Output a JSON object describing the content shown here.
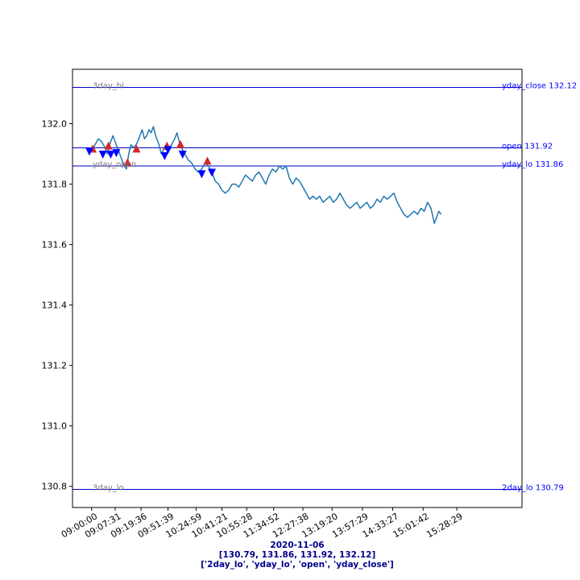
{
  "chart_data": {
    "type": "line",
    "date": "2020-11-06",
    "levels_text": "[130.79, 131.86, 131.92, 132.12]",
    "levels_names_text": "['2day_lo', 'yday_lo', 'open', 'yday_close']",
    "ylim": [
      130.73,
      132.18
    ],
    "yticks": [
      130.8,
      131.0,
      131.2,
      131.4,
      131.6,
      131.8,
      132.0
    ],
    "ytick_labels": [
      "130.8",
      "131.0",
      "131.2",
      "131.4",
      "131.6",
      "131.8",
      "132.0"
    ],
    "x_index_range": [
      -5,
      395
    ],
    "xticks": [
      {
        "i": 12,
        "label": "09:00:00"
      },
      {
        "i": 33,
        "label": "09:07:31"
      },
      {
        "i": 56,
        "label": "09:19:36"
      },
      {
        "i": 80,
        "label": "09:51:39"
      },
      {
        "i": 105,
        "label": "10:24:59"
      },
      {
        "i": 128,
        "label": "10:41:21"
      },
      {
        "i": 150,
        "label": "10:55:28"
      },
      {
        "i": 174,
        "label": "11:34:52"
      },
      {
        "i": 200,
        "label": "12:27:38"
      },
      {
        "i": 226,
        "label": "13:19:20"
      },
      {
        "i": 253,
        "label": "13:57:29"
      },
      {
        "i": 280,
        "label": "14:33:27"
      },
      {
        "i": 307,
        "label": "15:01:42"
      },
      {
        "i": 337,
        "label": "15:28:29"
      }
    ],
    "series": [
      {
        "color": "#1f77b4",
        "points": [
          [
            12,
            131.91
          ],
          [
            15,
            131.93
          ],
          [
            18,
            131.95
          ],
          [
            21,
            131.94
          ],
          [
            24,
            131.92
          ],
          [
            26,
            131.9
          ],
          [
            28,
            131.93
          ],
          [
            31,
            131.96
          ],
          [
            33,
            131.94
          ],
          [
            35,
            131.92
          ],
          [
            37,
            131.9
          ],
          [
            39,
            131.88
          ],
          [
            41,
            131.86
          ],
          [
            43,
            131.85
          ],
          [
            45,
            131.9
          ],
          [
            47,
            131.93
          ],
          [
            50,
            131.92
          ],
          [
            53,
            131.94
          ],
          [
            55,
            131.96
          ],
          [
            57,
            131.98
          ],
          [
            59,
            131.95
          ],
          [
            61,
            131.96
          ],
          [
            63,
            131.98
          ],
          [
            65,
            131.97
          ],
          [
            67,
            131.99
          ],
          [
            69,
            131.96
          ],
          [
            72,
            131.93
          ],
          [
            74,
            131.9
          ],
          [
            77,
            131.92
          ],
          [
            80,
            131.91
          ],
          [
            83,
            131.93
          ],
          [
            86,
            131.95
          ],
          [
            88,
            131.97
          ],
          [
            90,
            131.94
          ],
          [
            92,
            131.92
          ],
          [
            95,
            131.9
          ],
          [
            98,
            131.88
          ],
          [
            101,
            131.87
          ],
          [
            104,
            131.85
          ],
          [
            107,
            131.84
          ],
          [
            110,
            131.85
          ],
          [
            113,
            131.87
          ],
          [
            116,
            131.86
          ],
          [
            119,
            131.84
          ],
          [
            122,
            131.81
          ],
          [
            125,
            131.8
          ],
          [
            128,
            131.78
          ],
          [
            131,
            131.77
          ],
          [
            134,
            131.78
          ],
          [
            137,
            131.8
          ],
          [
            140,
            131.8
          ],
          [
            143,
            131.79
          ],
          [
            146,
            131.81
          ],
          [
            149,
            131.83
          ],
          [
            152,
            131.82
          ],
          [
            155,
            131.81
          ],
          [
            158,
            131.83
          ],
          [
            161,
            131.84
          ],
          [
            164,
            131.82
          ],
          [
            167,
            131.8
          ],
          [
            170,
            131.83
          ],
          [
            173,
            131.85
          ],
          [
            176,
            131.84
          ],
          [
            179,
            131.86
          ],
          [
            182,
            131.85
          ],
          [
            185,
            131.86
          ],
          [
            188,
            131.82
          ],
          [
            191,
            131.8
          ],
          [
            194,
            131.82
          ],
          [
            197,
            131.81
          ],
          [
            200,
            131.79
          ],
          [
            203,
            131.77
          ],
          [
            206,
            131.75
          ],
          [
            209,
            131.76
          ],
          [
            212,
            131.75
          ],
          [
            215,
            131.76
          ],
          [
            218,
            131.74
          ],
          [
            221,
            131.75
          ],
          [
            224,
            131.76
          ],
          [
            227,
            131.74
          ],
          [
            230,
            131.75
          ],
          [
            233,
            131.77
          ],
          [
            236,
            131.75
          ],
          [
            239,
            131.73
          ],
          [
            242,
            131.72
          ],
          [
            245,
            131.73
          ],
          [
            248,
            131.74
          ],
          [
            251,
            131.72
          ],
          [
            254,
            131.73
          ],
          [
            257,
            131.74
          ],
          [
            260,
            131.72
          ],
          [
            263,
            131.73
          ],
          [
            266,
            131.75
          ],
          [
            269,
            131.74
          ],
          [
            272,
            131.76
          ],
          [
            275,
            131.75
          ],
          [
            278,
            131.76
          ],
          [
            281,
            131.77
          ],
          [
            284,
            131.74
          ],
          [
            287,
            131.72
          ],
          [
            290,
            131.7
          ],
          [
            293,
            131.69
          ],
          [
            296,
            131.7
          ],
          [
            299,
            131.71
          ],
          [
            302,
            131.7
          ],
          [
            305,
            131.72
          ],
          [
            308,
            131.71
          ],
          [
            311,
            131.74
          ],
          [
            314,
            131.72
          ],
          [
            317,
            131.67
          ],
          [
            319,
            131.69
          ],
          [
            321,
            131.71
          ],
          [
            323,
            131.7
          ]
        ]
      }
    ],
    "markers_up": [
      [
        13,
        131.915
      ],
      [
        27,
        131.925
      ],
      [
        44,
        131.87
      ],
      [
        52,
        131.915
      ],
      [
        79,
        131.925
      ],
      [
        91,
        131.93
      ],
      [
        115,
        131.875
      ]
    ],
    "markers_down": [
      [
        10,
        131.91
      ],
      [
        22,
        131.9
      ],
      [
        29,
        131.9
      ],
      [
        34,
        131.905
      ],
      [
        77,
        131.895
      ],
      [
        80,
        131.915
      ],
      [
        93,
        131.9
      ],
      [
        110,
        131.835
      ],
      [
        119,
        131.84
      ]
    ],
    "hlines": [
      {
        "value": 132.12,
        "left_label": "3day_hi",
        "right_label": "yday_close 132.12"
      },
      {
        "value": 131.92,
        "left_label": "",
        "right_label": "open 131.92"
      },
      {
        "value": 131.86,
        "left_label": "yday_open",
        "right_label": "yday_lo 131.86"
      },
      {
        "value": 130.79,
        "left_label": "3day_lo",
        "right_label": "2day_lo 130.79"
      }
    ],
    "colors": {
      "line": "#1f77b4",
      "hline": "#0000cd",
      "right_label": "#0000ff",
      "left_label": "#777777",
      "marker_up": "#d62728",
      "marker_down": "#0000ff",
      "footer": "#00008b"
    }
  }
}
